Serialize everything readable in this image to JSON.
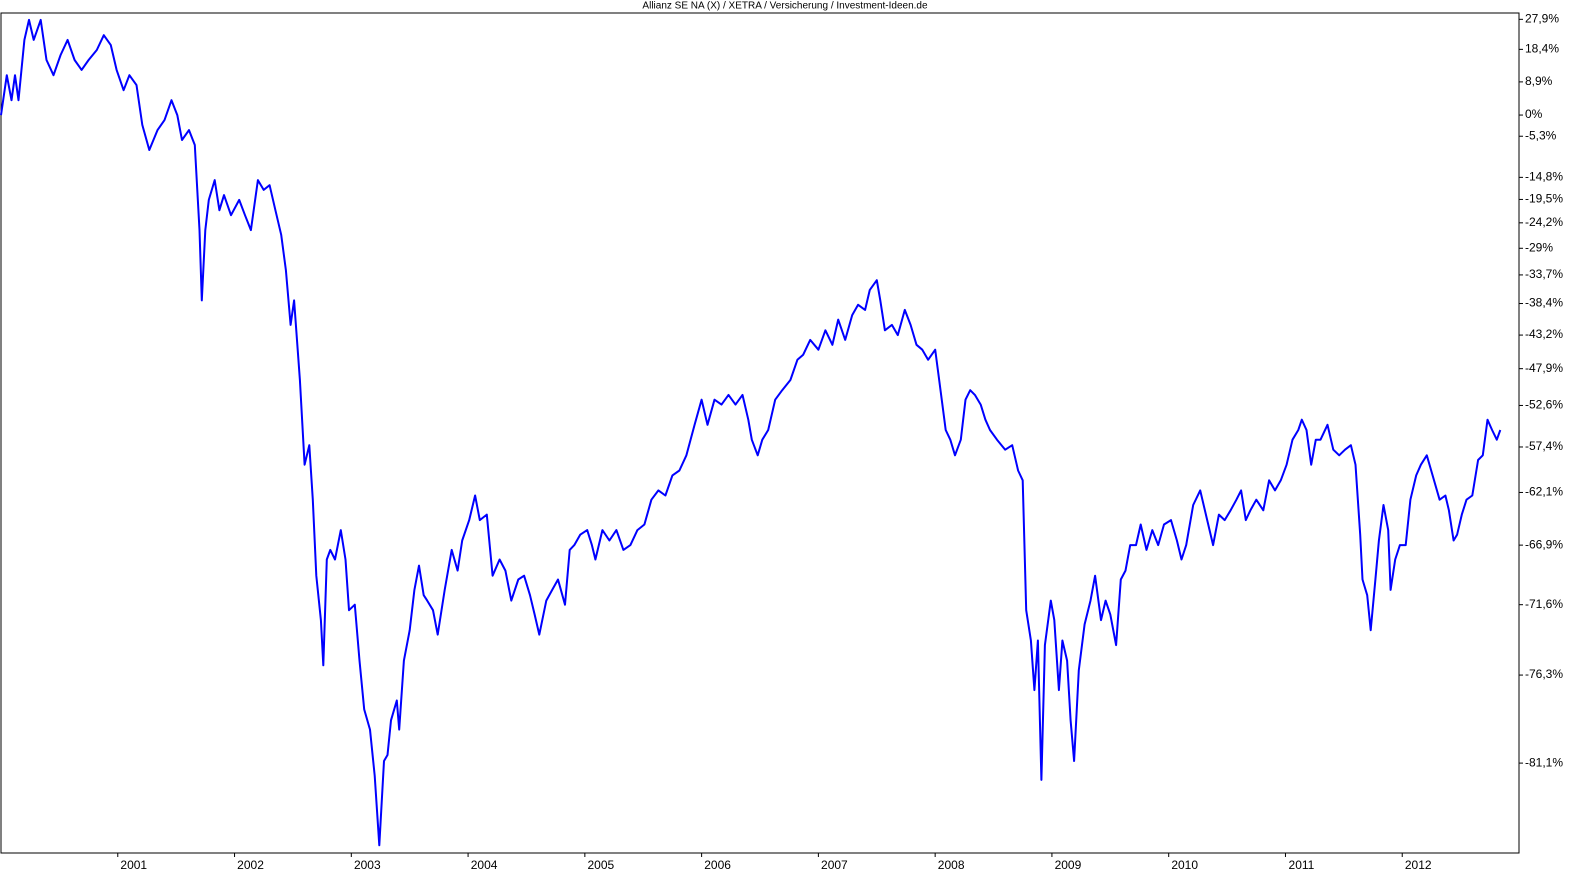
{
  "chart_data": {
    "type": "line",
    "title": "Allianz SE NA (X) / XETRA / Versicherung / Investment-Ideen.de",
    "log_scale": true,
    "xlim": [
      2000,
      2013
    ],
    "xticks": [
      2001,
      2002,
      2003,
      2004,
      2005,
      2006,
      2007,
      2008,
      2009,
      2010,
      2011,
      2012
    ],
    "ylim": [
      -85,
      30
    ],
    "yticks": [
      {
        "value": 27.9,
        "label": "27,9%"
      },
      {
        "value": 18.4,
        "label": "18,4%"
      },
      {
        "value": 8.9,
        "label": "8,9%"
      },
      {
        "value": 0,
        "label": "0%"
      },
      {
        "value": -5.3,
        "label": "-5,3%"
      },
      {
        "value": -14.8,
        "label": "-14,8%"
      },
      {
        "value": -19.5,
        "label": "-19,5%"
      },
      {
        "value": -24.2,
        "label": "-24,2%"
      },
      {
        "value": -29,
        "label": "-29%"
      },
      {
        "value": -33.7,
        "label": "-33,7%"
      },
      {
        "value": -38.4,
        "label": "-38,4%"
      },
      {
        "value": -43.2,
        "label": "-43,2%"
      },
      {
        "value": -47.9,
        "label": "-47,9%"
      },
      {
        "value": -52.6,
        "label": "-52,6%"
      },
      {
        "value": -57.4,
        "label": "-57,4%"
      },
      {
        "value": -62.1,
        "label": "-62,1%"
      },
      {
        "value": -66.9,
        "label": "-66,9%"
      },
      {
        "value": -71.6,
        "label": "-71,6%"
      },
      {
        "value": -76.3,
        "label": "-76,3%"
      },
      {
        "value": -81.1,
        "label": "-81,1%"
      }
    ],
    "series": [
      {
        "color": "#0000ff",
        "x": [
          2000.0,
          2000.05,
          2000.09,
          2000.12,
          2000.15,
          2000.2,
          2000.24,
          2000.28,
          2000.34,
          2000.39,
          2000.45,
          2000.51,
          2000.57,
          2000.63,
          2000.69,
          2000.75,
          2000.82,
          2000.88,
          2000.94,
          2000.99,
          2001.05,
          2001.1,
          2001.16,
          2001.21,
          2001.27,
          2001.34,
          2001.4,
          2001.46,
          2001.51,
          2001.55,
          2001.61,
          2001.66,
          2001.7,
          2001.72,
          2001.75,
          2001.78,
          2001.83,
          2001.87,
          2001.91,
          2001.97,
          2002.04,
          2002.09,
          2002.14,
          2002.2,
          2002.25,
          2002.3,
          2002.35,
          2002.4,
          2002.44,
          2002.48,
          2002.51,
          2002.56,
          2002.6,
          2002.64,
          2002.67,
          2002.7,
          2002.74,
          2002.76,
          2002.79,
          2002.82,
          2002.86,
          2002.91,
          2002.95,
          2002.98,
          2003.03,
          2003.07,
          2003.11,
          2003.16,
          2003.2,
          2003.24,
          2003.28,
          2003.31,
          2003.34,
          2003.39,
          2003.41,
          2003.45,
          2003.5,
          2003.54,
          2003.58,
          2003.62,
          2003.65,
          2003.7,
          2003.74,
          2003.8,
          2003.86,
          2003.91,
          2003.95,
          2004.01,
          2004.06,
          2004.1,
          2004.16,
          2004.21,
          2004.27,
          2004.32,
          2004.37,
          2004.43,
          2004.48,
          2004.53,
          2004.57,
          2004.61,
          2004.67,
          2004.72,
          2004.77,
          2004.83,
          2004.87,
          2004.91,
          2004.96,
          2005.02,
          2005.06,
          2005.09,
          2005.15,
          2005.21,
          2005.27,
          2005.33,
          2005.39,
          2005.45,
          2005.51,
          2005.57,
          2005.63,
          2005.69,
          2005.75,
          2005.81,
          2005.87,
          2005.94,
          2006.0,
          2006.05,
          2006.11,
          2006.17,
          2006.23,
          2006.29,
          2006.35,
          2006.4,
          2006.43,
          2006.48,
          2006.52,
          2006.57,
          2006.63,
          2006.69,
          2006.76,
          2006.82,
          2006.87,
          2006.93,
          2007.0,
          2007.06,
          2007.12,
          2007.17,
          2007.23,
          2007.29,
          2007.34,
          2007.4,
          2007.44,
          2007.5,
          2007.53,
          2007.57,
          2007.63,
          2007.68,
          2007.74,
          2007.79,
          2007.84,
          2007.89,
          2007.94,
          2008.0,
          2008.04,
          2008.09,
          2008.13,
          2008.17,
          2008.22,
          2008.26,
          2008.3,
          2008.34,
          2008.39,
          2008.43,
          2008.47,
          2008.53,
          2008.6,
          2008.66,
          2008.71,
          2008.75,
          2008.78,
          2008.82,
          2008.85,
          2008.88,
          2008.91,
          2008.94,
          2008.99,
          2009.02,
          2009.06,
          2009.09,
          2009.13,
          2009.16,
          2009.19,
          2009.23,
          2009.28,
          2009.33,
          2009.37,
          2009.42,
          2009.46,
          2009.5,
          2009.55,
          2009.59,
          2009.63,
          2009.67,
          2009.72,
          2009.76,
          2009.81,
          2009.86,
          2009.91,
          2009.96,
          2010.02,
          2010.07,
          2010.11,
          2010.15,
          2010.21,
          2010.27,
          2010.33,
          2010.38,
          2010.43,
          2010.48,
          2010.53,
          2010.58,
          2010.62,
          2010.66,
          2010.7,
          2010.75,
          2010.81,
          2010.86,
          2010.91,
          2010.96,
          2011.01,
          2011.06,
          2011.11,
          2011.14,
          2011.18,
          2011.22,
          2011.26,
          2011.3,
          2011.36,
          2011.41,
          2011.46,
          2011.51,
          2011.56,
          2011.6,
          2011.64,
          2011.66,
          2011.7,
          2011.73,
          2011.77,
          2011.8,
          2011.84,
          2011.88,
          2011.9,
          2011.94,
          2011.98,
          2012.03,
          2012.07,
          2012.12,
          2012.16,
          2012.21,
          2012.26,
          2012.32,
          2012.37,
          2012.4,
          2012.44,
          2012.47,
          2012.51,
          2012.55,
          2012.6,
          2012.65,
          2012.69,
          2012.73,
          2012.77,
          2012.81,
          2012.84
        ],
        "values": [
          0,
          10.8,
          3.9,
          10.8,
          3.9,
          21.3,
          27.7,
          21.3,
          27.7,
          15.2,
          10.8,
          16.7,
          21.3,
          15.2,
          12.3,
          15.2,
          18.2,
          22.8,
          19.7,
          12.3,
          6.6,
          10.8,
          8.0,
          -2.5,
          -8.6,
          -3.8,
          -1.3,
          3.9,
          0,
          -6.2,
          -3.8,
          -7.4,
          -25.6,
          -37.9,
          -25.6,
          -19.6,
          -15.4,
          -21.7,
          -18.6,
          -22.7,
          -19.6,
          -22.7,
          -25.6,
          -15.4,
          -17.5,
          -16.5,
          -21.7,
          -26.5,
          -32.9,
          -41.7,
          -37.9,
          -49.4,
          -59.3,
          -57.2,
          -62.8,
          -69.4,
          -72.7,
          -75.7,
          -68.1,
          -67.3,
          -68.1,
          -65.6,
          -68.1,
          -72.0,
          -71.6,
          -75.4,
          -78.3,
          -79.4,
          -81.7,
          -84.7,
          -81.0,
          -80.7,
          -78.9,
          -77.8,
          -79.4,
          -75.4,
          -73.4,
          -70.5,
          -68.6,
          -70.9,
          -71.3,
          -72.0,
          -73.7,
          -70.5,
          -67.3,
          -69.0,
          -66.5,
          -64.7,
          -62.4,
          -64.7,
          -64.2,
          -69.4,
          -68.1,
          -69.0,
          -71.3,
          -69.7,
          -69.4,
          -70.9,
          -72.3,
          -73.7,
          -71.3,
          -70.5,
          -69.7,
          -71.6,
          -67.3,
          -66.9,
          -66.0,
          -65.6,
          -66.9,
          -68.1,
          -65.6,
          -66.5,
          -65.6,
          -67.3,
          -66.9,
          -65.6,
          -65.1,
          -62.8,
          -61.9,
          -62.4,
          -60.4,
          -59.9,
          -58.3,
          -54.9,
          -51.9,
          -54.9,
          -51.9,
          -52.5,
          -51.3,
          -52.5,
          -51.3,
          -54.3,
          -56.6,
          -58.3,
          -56.6,
          -55.5,
          -51.9,
          -50.7,
          -49.4,
          -46.7,
          -46.0,
          -43.9,
          -45.3,
          -42.5,
          -44.6,
          -40.9,
          -43.9,
          -40.2,
          -38.6,
          -39.4,
          -36.2,
          -34.6,
          -37.9,
          -42.5,
          -41.7,
          -43.2,
          -39.4,
          -41.7,
          -44.6,
          -45.3,
          -46.7,
          -45.3,
          -50.0,
          -55.5,
          -56.6,
          -58.3,
          -56.6,
          -51.9,
          -50.7,
          -51.3,
          -52.5,
          -54.3,
          -55.5,
          -56.6,
          -57.7,
          -57.2,
          -59.9,
          -60.9,
          -72.0,
          -74.1,
          -77.2,
          -74.1,
          -81.9,
          -74.4,
          -71.3,
          -72.7,
          -77.2,
          -74.1,
          -75.4,
          -78.9,
          -81.0,
          -76.0,
          -73.0,
          -71.3,
          -69.4,
          -72.7,
          -71.3,
          -72.3,
          -74.4,
          -69.7,
          -69.0,
          -66.9,
          -66.9,
          -65.1,
          -67.3,
          -65.6,
          -66.9,
          -65.1,
          -64.7,
          -66.5,
          -68.1,
          -66.9,
          -63.3,
          -61.9,
          -64.7,
          -66.9,
          -64.2,
          -64.7,
          -63.8,
          -62.8,
          -61.9,
          -64.7,
          -63.8,
          -62.8,
          -63.8,
          -60.9,
          -61.9,
          -60.9,
          -59.3,
          -56.6,
          -55.5,
          -54.3,
          -55.5,
          -59.3,
          -56.6,
          -56.6,
          -54.9,
          -57.7,
          -58.3,
          -57.7,
          -57.2,
          -59.3,
          -66.0,
          -69.7,
          -70.9,
          -73.4,
          -69.7,
          -66.5,
          -63.3,
          -65.6,
          -70.5,
          -68.1,
          -66.9,
          -66.9,
          -62.8,
          -60.4,
          -59.3,
          -58.3,
          -60.4,
          -62.8,
          -62.4,
          -63.8,
          -66.5,
          -66.0,
          -64.2,
          -62.8,
          -62.4,
          -58.8,
          -58.3,
          -54.3,
          -55.5,
          -56.6,
          -55.5
        ]
      }
    ]
  }
}
